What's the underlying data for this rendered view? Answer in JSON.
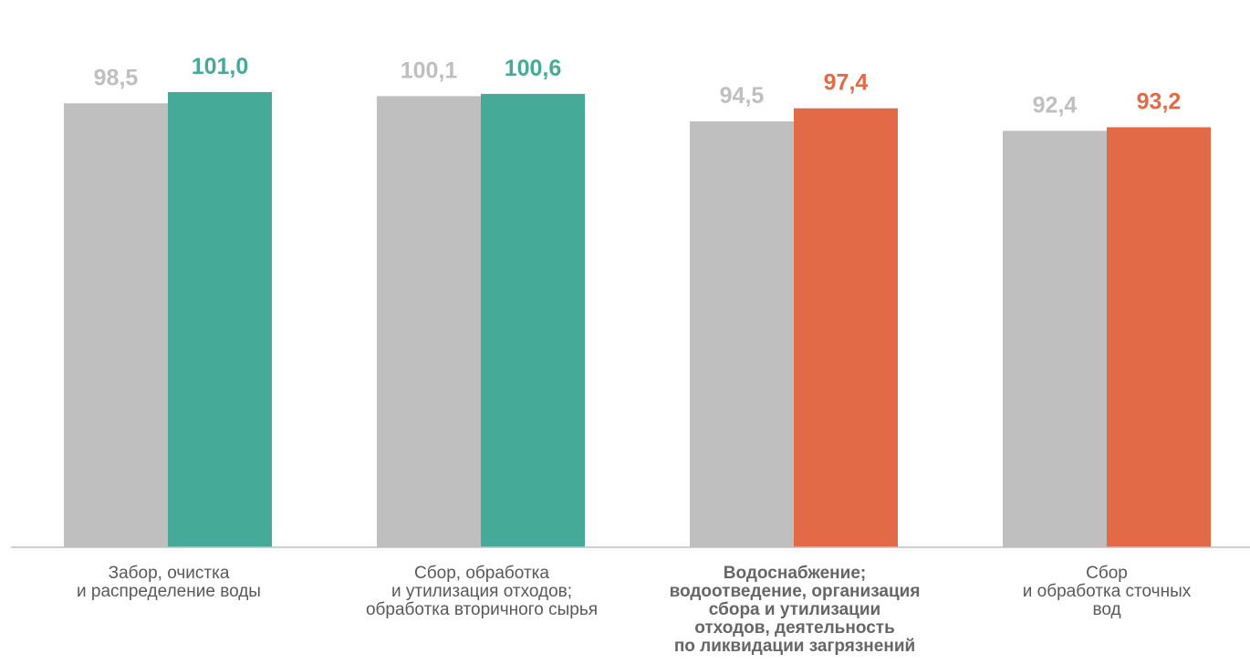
{
  "chart_data": {
    "type": "bar",
    "ylim": [
      0,
      110.3
    ],
    "grid": false,
    "legend": "none",
    "colors": {
      "grey": "#bfbfbf",
      "green": "#45ab98",
      "orange": "#e36a47",
      "axis": "#bfbfbf",
      "label_grey": "#bfbfbf"
    },
    "categories": [
      {
        "lines": [
          "Забор, очистка",
          "и распределение воды"
        ],
        "bold": false,
        "values": [
          98.5,
          101.0
        ],
        "value_labels": [
          "98,5",
          "101,0"
        ],
        "colors": [
          "grey",
          "green"
        ]
      },
      {
        "lines": [
          "Сбор, обработка",
          "и утилизация отходов;",
          "обработка вторичного сырья"
        ],
        "bold": false,
        "values": [
          100.1,
          100.6
        ],
        "value_labels": [
          "100,1",
          "100,6"
        ],
        "colors": [
          "grey",
          "green"
        ]
      },
      {
        "lines": [
          "Водоснабжение;",
          "водоотведение, организация",
          "сбора и утилизации",
          "отходов, деятельность",
          "по ликвидации загрязнений"
        ],
        "bold": true,
        "values": [
          94.5,
          97.4
        ],
        "value_labels": [
          "94,5",
          "97,4"
        ],
        "colors": [
          "grey",
          "orange"
        ]
      },
      {
        "lines": [
          "Сбор",
          "и обработка сточных",
          "вод"
        ],
        "bold": false,
        "values": [
          92.4,
          93.2
        ],
        "value_labels": [
          "92,4",
          "93,2"
        ],
        "colors": [
          "grey",
          "orange"
        ]
      }
    ]
  }
}
